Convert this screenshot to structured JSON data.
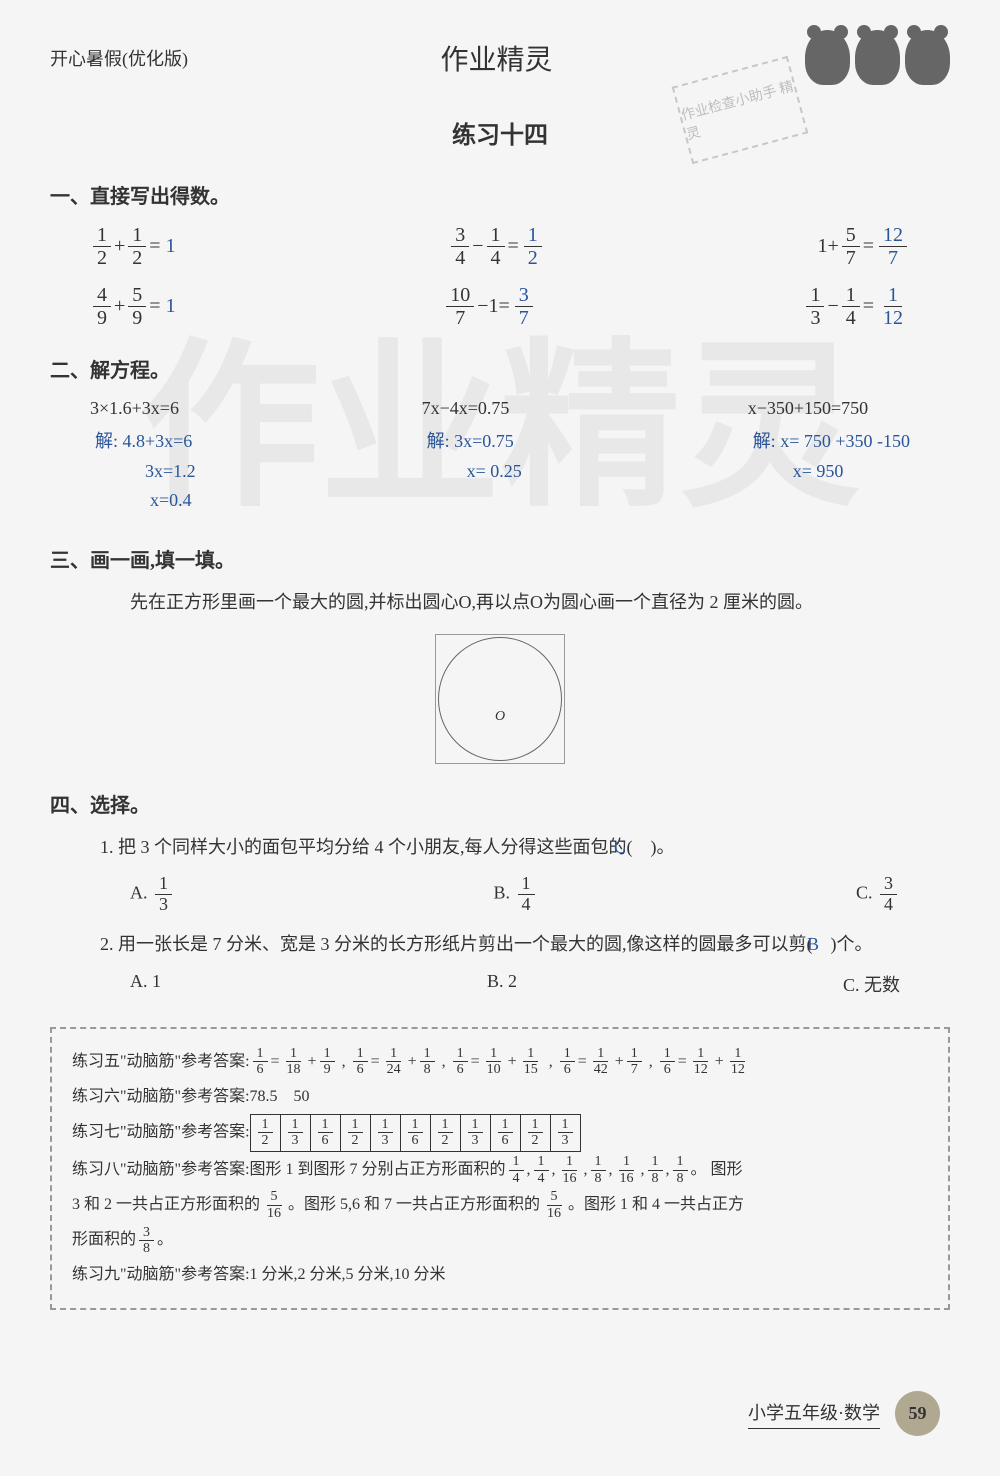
{
  "header": {
    "book_title": "开心暑假(优化版)",
    "script_title": "作业精灵",
    "stamp_text": "作业检查小助手 精灵"
  },
  "main_title": "练习十四",
  "watermark": "作业精灵",
  "section1": {
    "title": "一、直接写出得数。",
    "row1": {
      "q1_n1": "1",
      "q1_d1": "2",
      "q1_n2": "1",
      "q1_d2": "2",
      "q1_ans": "1",
      "q2_n1": "3",
      "q2_d1": "4",
      "q2_n2": "1",
      "q2_d2": "4",
      "q2_ans_n": "1",
      "q2_ans_d": "2",
      "q3_whole": "1",
      "q3_n": "5",
      "q3_d": "7",
      "q3_ans_n": "12",
      "q3_ans_d": "7"
    },
    "row2": {
      "q4_n1": "4",
      "q4_d1": "9",
      "q4_n2": "5",
      "q4_d2": "9",
      "q4_ans": "1",
      "q5_n": "10",
      "q5_d": "7",
      "q5_sub": "1",
      "q5_ans_n": "3",
      "q5_ans_d": "7",
      "q6_n1": "1",
      "q6_d1": "3",
      "q6_n2": "1",
      "q6_d2": "4",
      "q6_ans_n": "1",
      "q6_ans_d": "12"
    }
  },
  "section2": {
    "title": "二、解方程。",
    "eq1": {
      "problem": "3×1.6+3x=6",
      "step1": "解: 4.8+3x=6",
      "step2": "3x=1.2",
      "step3": "x=0.4"
    },
    "eq2": {
      "problem": "7x−4x=0.75",
      "step1": "解: 3x=0.75",
      "step2": "x= 0.25"
    },
    "eq3": {
      "problem": "x−350+150=750",
      "step1": "解: x= 750 +350 -150",
      "step2": "x= 950"
    }
  },
  "section3": {
    "title": "三、画一画,填一填。",
    "instruction": "先在正方形里画一个最大的圆,并标出圆心O,再以点O为圆心画一个直径为 2 厘米的圆。",
    "center_label": "O"
  },
  "section4": {
    "title": "四、选择。",
    "q1": {
      "text": "1. 把 3 个同样大小的面包平均分给 4 个小朋友,每人分得这些面包的(　)。",
      "answer": "C",
      "optA_label": "A.",
      "optA_n": "1",
      "optA_d": "3",
      "optB_label": "B.",
      "optB_n": "1",
      "optB_d": "4",
      "optC_label": "C.",
      "optC_n": "3",
      "optC_d": "4"
    },
    "q2": {
      "text": "2. 用一张长是 7 分米、宽是 3 分米的长方形纸片剪出一个最大的圆,像这样的圆最多可以剪(　)个。",
      "answer": "B",
      "optA": "A.  1",
      "optB": "B.  2",
      "optC": "C.  无数"
    }
  },
  "answer_box": {
    "line5_prefix": "练习五\"动脑筋\"参考答案:",
    "line5_data": [
      {
        "ln": "1",
        "ld": "6",
        "rn": "1",
        "rd": "18",
        "pn": "1",
        "pd": "9"
      },
      {
        "ln": "1",
        "ld": "6",
        "rn": "1",
        "rd": "24",
        "pn": "1",
        "pd": "8"
      },
      {
        "ln": "1",
        "ld": "6",
        "rn": "1",
        "rd": "10",
        "pn": "1",
        "pd": "15"
      },
      {
        "ln": "1",
        "ld": "6",
        "rn": "1",
        "rd": "42",
        "pn": "1",
        "pd": "7"
      },
      {
        "ln": "1",
        "ld": "6",
        "rn": "1",
        "rd": "12",
        "pn": "1",
        "pd": "12"
      }
    ],
    "line6": "练习六\"动脑筋\"参考答案:78.5　50",
    "line7_prefix": "练习七\"动脑筋\"参考答案:",
    "line7_cells": [
      {
        "n": "1",
        "d": "2"
      },
      {
        "n": "1",
        "d": "3"
      },
      {
        "n": "1",
        "d": "6"
      },
      {
        "n": "1",
        "d": "2"
      },
      {
        "n": "1",
        "d": "3"
      },
      {
        "n": "1",
        "d": "6"
      },
      {
        "n": "1",
        "d": "2"
      },
      {
        "n": "1",
        "d": "3"
      },
      {
        "n": "1",
        "d": "6"
      },
      {
        "n": "1",
        "d": "2"
      },
      {
        "n": "1",
        "d": "3"
      }
    ],
    "line8_prefix": "练习八\"动脑筋\"参考答案:图形 1 到图形 7 分别占正方形面积的",
    "line8_fracs": [
      {
        "n": "1",
        "d": "4"
      },
      {
        "n": "1",
        "d": "4"
      },
      {
        "n": "1",
        "d": "16"
      },
      {
        "n": "1",
        "d": "8"
      },
      {
        "n": "1",
        "d": "16"
      },
      {
        "n": "1",
        "d": "8"
      },
      {
        "n": "1",
        "d": "8"
      }
    ],
    "line8_suffix": "。 图形",
    "line8b_prefix": "3 和 2 一共占正方形面积的",
    "line8b_f1_n": "5",
    "line8b_f1_d": "16",
    "line8b_mid": "。图形 5,6 和 7 一共占正方形面积的",
    "line8b_f2_n": "5",
    "line8b_f2_d": "16",
    "line8b_suffix": "。图形 1 和 4 一共占正方",
    "line8c_prefix": "形面积的",
    "line8c_n": "3",
    "line8c_d": "8",
    "line8c_suffix": "。",
    "line9": "练习九\"动脑筋\"参考答案:1 分米,2 分米,5 分米,10 分米"
  },
  "footer": {
    "subject": "小学五年级·数学",
    "page": "59"
  },
  "colors": {
    "handwrite": "#2a5599",
    "page_badge": "#b0a890",
    "text": "#333333",
    "bg": "#f5f5f5"
  }
}
